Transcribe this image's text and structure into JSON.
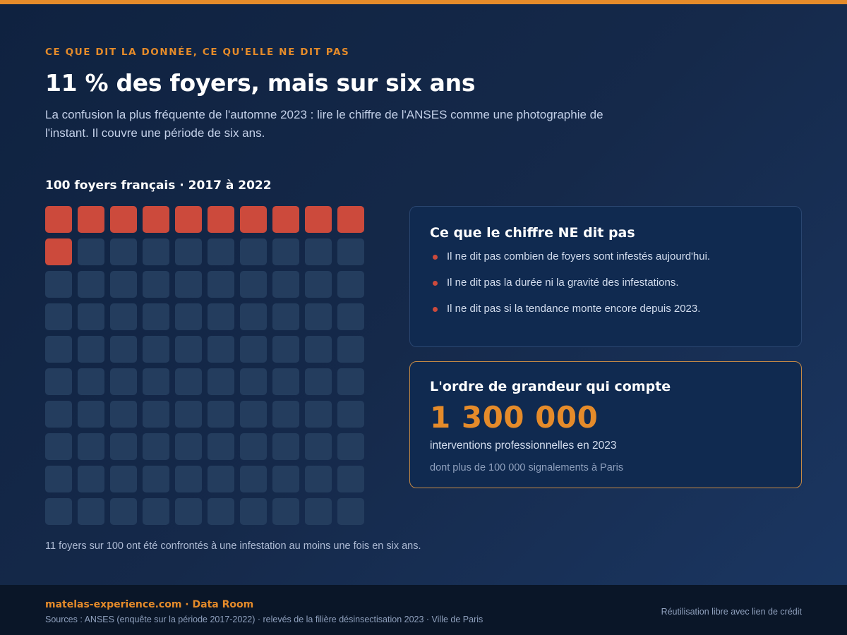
{
  "header": {
    "kicker": "CE QUE DIT LA DONNÉE, CE QU'ELLE NE DIT PAS",
    "title": "11 % des foyers, mais sur six ans",
    "subtitle": "La confusion la plus fréquente de l'automne 2023 : lire le chiffre de l'ANSES comme une photographie de l'instant. Il couvre une période de six ans."
  },
  "chart_data": {
    "type": "waffle",
    "title": "100 foyers français · 2017 à 2022",
    "total": 100,
    "highlighted": 11,
    "rows": 10,
    "columns": 10,
    "caption": "11 foyers sur 100 ont été confrontés à une infestation au moins une fois en six ans.",
    "colors": {
      "highlighted": "#cc4a3c",
      "rest": "#243d5e"
    }
  },
  "card_not_said": {
    "title": "Ce que le chiffre NE dit pas",
    "items": [
      "Il ne dit pas combien de foyers sont infestés aujourd'hui.",
      "Il ne dit pas la durée ni la gravité des infestations.",
      "Il ne dit pas si la tendance monte encore depuis 2023."
    ]
  },
  "card_scale": {
    "title": "L'ordre de grandeur qui compte",
    "value": "1 300 000",
    "label": "interventions professionnelles en 2023",
    "note": "dont plus de 100 000 signalements à Paris"
  },
  "footer": {
    "brand": "matelas-experience.com · Data Room",
    "sources": "Sources : ANSES (enquête sur la période 2017-2022) · relevés de la filière désinsectisation 2023 · Ville de Paris",
    "license": "Réutilisation libre avec lien de crédit"
  },
  "colors": {
    "accent": "#e58b2a",
    "highlight": "#cc4a3c",
    "background": "#15294a"
  }
}
